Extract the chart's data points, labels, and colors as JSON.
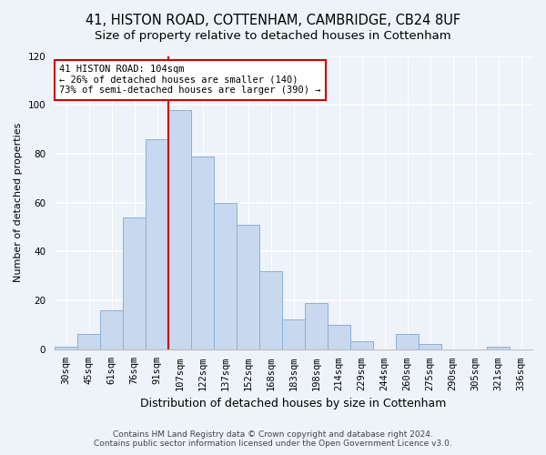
{
  "title": "41, HISTON ROAD, COTTENHAM, CAMBRIDGE, CB24 8UF",
  "subtitle": "Size of property relative to detached houses in Cottenham",
  "xlabel": "Distribution of detached houses by size in Cottenham",
  "ylabel": "Number of detached properties",
  "bar_labels": [
    "30sqm",
    "45sqm",
    "61sqm",
    "76sqm",
    "91sqm",
    "107sqm",
    "122sqm",
    "137sqm",
    "152sqm",
    "168sqm",
    "183sqm",
    "198sqm",
    "214sqm",
    "229sqm",
    "244sqm",
    "260sqm",
    "275sqm",
    "290sqm",
    "305sqm",
    "321sqm",
    "336sqm"
  ],
  "bar_values": [
    1,
    6,
    16,
    54,
    86,
    98,
    79,
    60,
    51,
    32,
    12,
    19,
    10,
    3,
    0,
    6,
    2,
    0,
    0,
    1,
    0
  ],
  "bar_color": "#c8d8ee",
  "bar_edge_color": "#8ab0d8",
  "vline_color": "#cc0000",
  "vline_bar_index": 5,
  "annotation_title": "41 HISTON ROAD: 104sqm",
  "annotation_line1": "← 26% of detached houses are smaller (140)",
  "annotation_line2": "73% of semi-detached houses are larger (390) →",
  "annotation_box_color": "#ffffff",
  "annotation_box_edge_color": "#cc0000",
  "ylim": [
    0,
    120
  ],
  "yticks": [
    0,
    20,
    40,
    60,
    80,
    100,
    120
  ],
  "footer1": "Contains HM Land Registry data © Crown copyright and database right 2024.",
  "footer2": "Contains public sector information licensed under the Open Government Licence v3.0.",
  "bg_color": "#eef2f9",
  "title_fontsize": 10.5,
  "subtitle_fontsize": 9.5,
  "xlabel_fontsize": 9,
  "ylabel_fontsize": 8,
  "tick_fontsize": 7.5,
  "footer_fontsize": 6.5
}
